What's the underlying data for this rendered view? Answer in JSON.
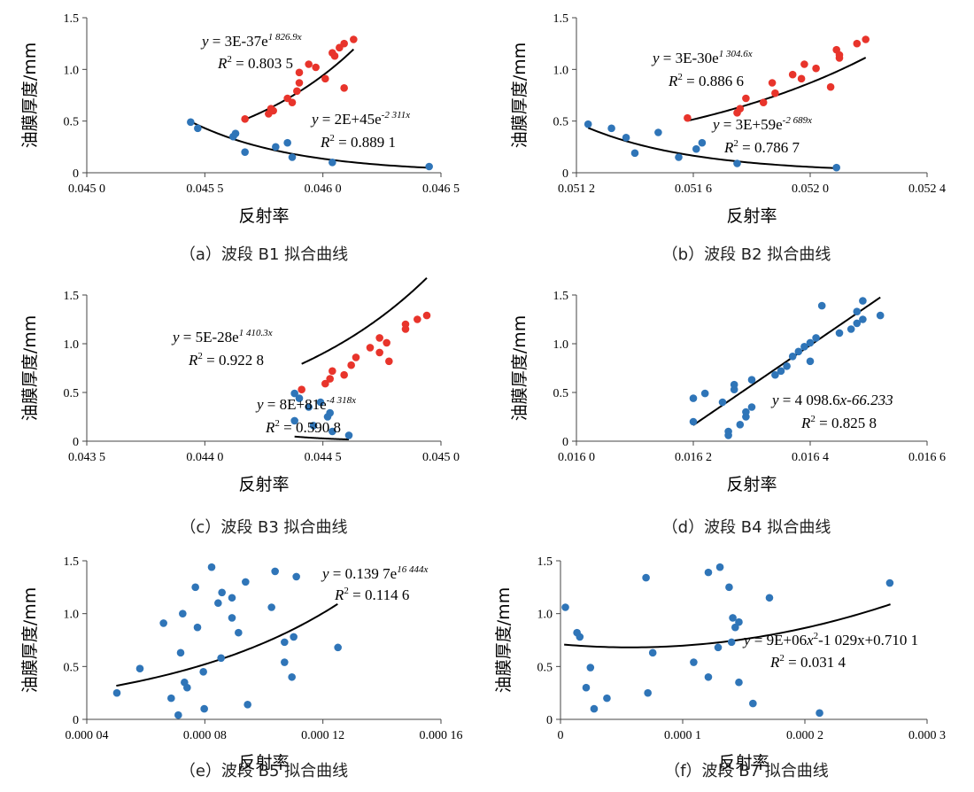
{
  "chart_data": [
    {
      "type": "scatter",
      "xlabel": "反射率",
      "ylabel": "油膜厚度/mm",
      "caption": "（a）波段 B1 拟合曲线",
      "xlim": [
        0.045,
        0.0465
      ],
      "ylim": [
        0,
        1.5
      ],
      "xticks": [
        0.045,
        0.0455,
        0.046,
        0.0465
      ],
      "xtick_labels": [
        "0.045 0",
        "0.045 5",
        "0.046 0",
        "0.046 5"
      ],
      "yticks": [
        0,
        0.5,
        1.0,
        1.5
      ],
      "ytick_labels": [
        "0",
        "0.5",
        "1.0",
        "1.5"
      ],
      "series": [
        {
          "color": "#e8342b",
          "points": [
            [
              0.04567,
              0.52
            ],
            [
              0.04577,
              0.57
            ],
            [
              0.04578,
              0.62
            ],
            [
              0.04579,
              0.6
            ],
            [
              0.04585,
              0.72
            ],
            [
              0.04587,
              0.68
            ],
            [
              0.04589,
              0.79
            ],
            [
              0.0459,
              0.87
            ],
            [
              0.0459,
              0.97
            ],
            [
              0.04594,
              1.05
            ],
            [
              0.04597,
              1.02
            ],
            [
              0.04601,
              0.91
            ],
            [
              0.04604,
              1.16
            ],
            [
              0.04605,
              1.13
            ],
            [
              0.04607,
              1.21
            ],
            [
              0.04609,
              1.25
            ],
            [
              0.04609,
              0.82
            ],
            [
              0.04613,
              1.29
            ]
          ],
          "fit": {
            "kind": "exp",
            "a": 3e-37,
            "b": 1826.9,
            "range": [
              0.04566,
              0.04613
            ]
          },
          "eq": {
            "lead": "y",
            "coef": " = 3E-37e",
            "exp": "1 826.9x",
            "r2": " = 0.803 5"
          }
        },
        {
          "color": "#2f75b8",
          "points": [
            [
              0.04544,
              0.49
            ],
            [
              0.04547,
              0.43
            ],
            [
              0.04562,
              0.35
            ],
            [
              0.04563,
              0.38
            ],
            [
              0.04567,
              0.2
            ],
            [
              0.0458,
              0.25
            ],
            [
              0.04585,
              0.29
            ],
            [
              0.04587,
              0.15
            ],
            [
              0.04604,
              0.1
            ],
            [
              0.04645,
              0.06
            ]
          ],
          "fit": {
            "kind": "exp",
            "a": 2e+45,
            "b": -2311,
            "range": [
              0.04544,
              0.04645
            ]
          },
          "eq": {
            "lead": "y",
            "coef": " = 2E+45e",
            "exp": "-2 311x",
            "r2": " = 0.889 1"
          }
        }
      ]
    },
    {
      "type": "scatter",
      "xlabel": "反射率",
      "ylabel": "油膜厚度/mm",
      "caption": "（b）波段 B2 拟合曲线",
      "xlim": [
        0.0512,
        0.0524
      ],
      "ylim": [
        0,
        1.5
      ],
      "xticks": [
        0.0512,
        0.0516,
        0.052,
        0.0524
      ],
      "xtick_labels": [
        "0.051 2",
        "0.051 6",
        "0.052 0",
        "0.052 4"
      ],
      "yticks": [
        0,
        0.5,
        1.0,
        1.5
      ],
      "ytick_labels": [
        "0",
        "0.5",
        "1.0",
        "1.5"
      ],
      "series": [
        {
          "color": "#e8342b",
          "points": [
            [
              0.05158,
              0.53
            ],
            [
              0.05175,
              0.58
            ],
            [
              0.05176,
              0.62
            ],
            [
              0.05178,
              0.72
            ],
            [
              0.05184,
              0.68
            ],
            [
              0.05187,
              0.87
            ],
            [
              0.05188,
              0.77
            ],
            [
              0.05194,
              0.95
            ],
            [
              0.05197,
              0.91
            ],
            [
              0.05198,
              1.05
            ],
            [
              0.05202,
              1.01
            ],
            [
              0.05207,
              0.83
            ],
            [
              0.05209,
              1.19
            ],
            [
              0.0521,
              1.14
            ],
            [
              0.0521,
              1.11
            ],
            [
              0.05216,
              1.25
            ],
            [
              0.05219,
              1.29
            ]
          ],
          "fit": {
            "kind": "exp",
            "a": 3e-30,
            "b": 1304.6,
            "range": [
              0.05158,
              0.05219
            ]
          },
          "eq": {
            "lead": "y",
            "coef": " = 3E-30e",
            "exp": "1 304.6x",
            "r2": " = 0.886 6"
          }
        },
        {
          "color": "#2f75b8",
          "points": [
            [
              0.05124,
              0.47
            ],
            [
              0.05132,
              0.43
            ],
            [
              0.05137,
              0.34
            ],
            [
              0.0514,
              0.19
            ],
            [
              0.05148,
              0.39
            ],
            [
              0.05155,
              0.15
            ],
            [
              0.05161,
              0.23
            ],
            [
              0.05163,
              0.29
            ],
            [
              0.05175,
              0.09
            ],
            [
              0.05209,
              0.05
            ]
          ],
          "fit": {
            "kind": "exp",
            "a": 3e+59,
            "b": -2689,
            "range": [
              0.05124,
              0.05208
            ]
          },
          "eq": {
            "lead": "y",
            "coef": " = 3E+59e",
            "exp": "-2 689x",
            "r2": " = 0.786 7"
          }
        }
      ]
    },
    {
      "type": "scatter",
      "xlabel": "反射率",
      "ylabel": "油膜厚度/mm",
      "caption": "（c）波段 B3 拟合曲线",
      "xlim": [
        0.0435,
        0.045
      ],
      "ylim": [
        0,
        1.5
      ],
      "xticks": [
        0.0435,
        0.044,
        0.0445,
        0.045
      ],
      "xtick_labels": [
        "0.043 5",
        "0.044 0",
        "0.044 5",
        "0.045 0"
      ],
      "yticks": [
        0,
        0.5,
        1.0,
        1.5
      ],
      "ytick_labels": [
        "0",
        "0.5",
        "1.0",
        "1.5"
      ],
      "series": [
        {
          "color": "#e8342b",
          "points": [
            [
              0.04441,
              0.53
            ],
            [
              0.04451,
              0.59
            ],
            [
              0.04453,
              0.64
            ],
            [
              0.04454,
              0.72
            ],
            [
              0.04459,
              0.68
            ],
            [
              0.04462,
              0.78
            ],
            [
              0.04464,
              0.86
            ],
            [
              0.0447,
              0.96
            ],
            [
              0.04474,
              1.06
            ],
            [
              0.04474,
              0.91
            ],
            [
              0.04477,
              1.01
            ],
            [
              0.04478,
              0.82
            ],
            [
              0.04485,
              1.2
            ],
            [
              0.04485,
              1.15
            ],
            [
              0.0449,
              1.25
            ],
            [
              0.04494,
              1.29
            ]
          ],
          "fit": {
            "kind": "exp",
            "a": 5e-28,
            "b": 1410.3,
            "range": [
              0.04441,
              0.04494
            ]
          },
          "eq": {
            "lead": "y",
            "coef": " = 5E-28e",
            "exp": "1 410.3x",
            "r2": " = 0.922 8"
          }
        },
        {
          "color": "#2f75b8",
          "points": [
            [
              0.04438,
              0.49
            ],
            [
              0.04438,
              0.21
            ],
            [
              0.0444,
              0.44
            ],
            [
              0.04444,
              0.35
            ],
            [
              0.04446,
              0.16
            ],
            [
              0.04449,
              0.4
            ],
            [
              0.04452,
              0.25
            ],
            [
              0.04453,
              0.29
            ],
            [
              0.04454,
              0.1
            ],
            [
              0.04461,
              0.06
            ]
          ],
          "fit": {
            "kind": "exp",
            "a": 8e+81,
            "b": -4318,
            "range": [
              0.04438,
              0.04461
            ]
          },
          "eq": {
            "lead": "y",
            "coef": " = 8E+81e",
            "exp": "-4 318x",
            "r2": " = 0.590 8"
          }
        }
      ]
    },
    {
      "type": "scatter",
      "xlabel": "反射率",
      "ylabel": "油膜厚度/mm",
      "caption": "（d）波段 B4 拟合曲线",
      "xlim": [
        0.016,
        0.0166
      ],
      "ylim": [
        0,
        1.5
      ],
      "xticks": [
        0.016,
        0.0162,
        0.0164,
        0.0166
      ],
      "xtick_labels": [
        "0.016 0",
        "0.016 2",
        "0.016 4",
        "0.016 6"
      ],
      "yticks": [
        0,
        0.5,
        1.0,
        1.5
      ],
      "ytick_labels": [
        "0",
        "0.5",
        "1.0",
        "1.5"
      ],
      "series": [
        {
          "color": "#2f75b8",
          "points": [
            [
              0.0162,
              0.2
            ],
            [
              0.0162,
              0.44
            ],
            [
              0.01622,
              0.49
            ],
            [
              0.01625,
              0.4
            ],
            [
              0.01626,
              0.1
            ],
            [
              0.01626,
              0.06
            ],
            [
              0.01627,
              0.53
            ],
            [
              0.01627,
              0.58
            ],
            [
              0.01628,
              0.17
            ],
            [
              0.01629,
              0.25
            ],
            [
              0.01629,
              0.3
            ],
            [
              0.0163,
              0.35
            ],
            [
              0.0163,
              0.63
            ],
            [
              0.01634,
              0.68
            ],
            [
              0.01635,
              0.72
            ],
            [
              0.01636,
              0.77
            ],
            [
              0.01637,
              0.87
            ],
            [
              0.01638,
              0.92
            ],
            [
              0.01639,
              0.97
            ],
            [
              0.0164,
              1.01
            ],
            [
              0.0164,
              0.82
            ],
            [
              0.01641,
              1.06
            ],
            [
              0.01642,
              1.39
            ],
            [
              0.01645,
              1.11
            ],
            [
              0.01647,
              1.15
            ],
            [
              0.01648,
              1.21
            ],
            [
              0.01648,
              1.33
            ],
            [
              0.01649,
              1.44
            ],
            [
              0.01649,
              1.25
            ],
            [
              0.01652,
              1.29
            ]
          ],
          "fit": {
            "kind": "poly",
            "c": [
              -66.233,
              4098.6
            ],
            "range": [
              0.0162,
              0.01652
            ]
          },
          "eq": {
            "lead": "y",
            "coef": " = 4 098.6",
            "expr": "x-66.233",
            "r2": " = 0.825 8"
          }
        }
      ]
    },
    {
      "type": "scatter",
      "xlabel": "反射率",
      "ylabel": "油膜厚度/mm",
      "caption": "（e）波段 B5 拟合曲线",
      "xlim": [
        4e-05,
        0.00016
      ],
      "ylim": [
        0,
        1.5
      ],
      "xticks": [
        4e-05,
        8e-05,
        0.00012,
        0.00016
      ],
      "xtick_labels": [
        "0.000 04",
        "0.000 08",
        "0.000 12",
        "0.000 16"
      ],
      "yticks": [
        0,
        0.5,
        1.0,
        1.5
      ],
      "ytick_labels": [
        "0",
        "0.5",
        "1.0",
        "1.5"
      ],
      "series": [
        {
          "color": "#2f75b8",
          "points": [
            [
              5.02e-05,
              0.25
            ],
            [
              5.8e-05,
              0.48
            ],
            [
              6.6e-05,
              0.91
            ],
            [
              6.86e-05,
              0.2
            ],
            [
              7.1e-05,
              0.04
            ],
            [
              7.18e-05,
              0.63
            ],
            [
              7.25e-05,
              1.0
            ],
            [
              7.31e-05,
              0.35
            ],
            [
              7.4e-05,
              0.3
            ],
            [
              7.68e-05,
              1.25
            ],
            [
              7.75e-05,
              0.87
            ],
            [
              7.95e-05,
              0.45
            ],
            [
              7.98e-05,
              0.1
            ],
            [
              8.23e-05,
              1.44
            ],
            [
              8.45e-05,
              1.1
            ],
            [
              8.55e-05,
              0.58
            ],
            [
              8.58e-05,
              1.2
            ],
            [
              8.92e-05,
              0.96
            ],
            [
              8.92e-05,
              1.15
            ],
            [
              9.14e-05,
              0.82
            ],
            [
              9.38e-05,
              1.3
            ],
            [
              9.45e-05,
              0.14
            ],
            [
              0.0001026,
              1.06
            ],
            [
              0.0001038,
              1.4
            ],
            [
              0.000107,
              0.73
            ],
            [
              0.000107,
              0.54
            ],
            [
              0.0001095,
              0.4
            ],
            [
              0.0001101,
              0.78
            ],
            [
              0.000111,
              1.35
            ],
            [
              0.0001251,
              0.68
            ]
          ],
          "fit": {
            "kind": "exp",
            "a": 0.1397,
            "b": 16444,
            "range": [
              5e-05,
              0.000125
            ]
          },
          "eq": {
            "lead": "y",
            "coef": " = 0.139 7e",
            "exp": "16 444x",
            "r2": " = 0.114 6"
          }
        }
      ]
    },
    {
      "type": "scatter",
      "xlabel": "反射率",
      "ylabel": "油膜厚度/mm",
      "caption": "（f）波段 B7 拟合曲线",
      "xlim": [
        0,
        0.0003
      ],
      "ylim": [
        0,
        1.5
      ],
      "xticks": [
        0,
        0.0001,
        0.0002,
        0.0003
      ],
      "xtick_labels": [
        "0",
        "0.000 1",
        "0.000 2",
        "0.000 3"
      ],
      "yticks": [
        0,
        0.5,
        1.0,
        1.5
      ],
      "ytick_labels": [
        "0",
        "0.5",
        "1.0",
        "1.5"
      ],
      "series": [
        {
          "color": "#2f75b8",
          "points": [
            [
              4e-06,
              1.06
            ],
            [
              1.35e-05,
              0.82
            ],
            [
              1.58e-05,
              0.78
            ],
            [
              2.1e-05,
              0.3
            ],
            [
              2.45e-05,
              0.49
            ],
            [
              2.75e-05,
              0.1
            ],
            [
              3.8e-05,
              0.2
            ],
            [
              7e-05,
              1.34
            ],
            [
              7.15e-05,
              0.25
            ],
            [
              7.55e-05,
              0.63
            ],
            [
              0.000109,
              0.54
            ],
            [
              0.000121,
              1.39
            ],
            [
              0.000121,
              0.4
            ],
            [
              0.000129,
              0.68
            ],
            [
              0.0001305,
              1.44
            ],
            [
              0.000138,
              1.25
            ],
            [
              0.00014,
              0.73
            ],
            [
              0.000141,
              0.96
            ],
            [
              0.000143,
              0.87
            ],
            [
              0.000146,
              0.92
            ],
            [
              0.000146,
              0.35
            ],
            [
              0.0001575,
              0.15
            ],
            [
              0.000171,
              1.15
            ],
            [
              0.000212,
              0.06
            ],
            [
              0.0002695,
              1.29
            ]
          ],
          "fit": {
            "kind": "poly",
            "c": [
              0.7101,
              -1029,
              9000000
            ],
            "range": [
              3e-06,
              0.00027
            ]
          },
          "eq": {
            "lead": "y",
            "coef": " = 9E+06",
            "expr": "x",
            "exp": "2",
            "tail": "-1 029x+0.710 1",
            "r2": " = 0.031 4"
          }
        }
      ]
    }
  ]
}
